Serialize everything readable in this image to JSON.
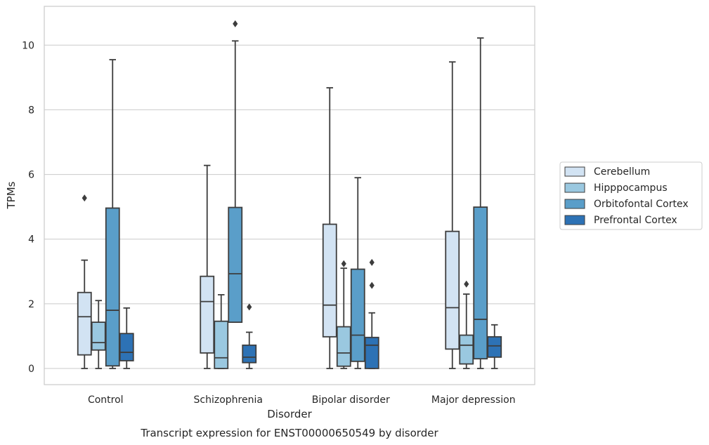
{
  "caption": "Transcript expression for ENST00000650549 by disorder",
  "chart_data": {
    "type": "box",
    "title": "",
    "xlabel": "Disorder",
    "ylabel": "TPMs",
    "ylim": [
      -0.5,
      11.2
    ],
    "yticks": [
      0,
      2,
      4,
      6,
      8,
      10
    ],
    "grid": "horizontal",
    "legend_position": "right-outside",
    "categories": [
      "Control",
      "Schizophrenia",
      "Bipolar disorder",
      "Major depression"
    ],
    "series": [
      {
        "name": "Cerebellum",
        "color": "#d2e3f3",
        "boxes": [
          {
            "whislo": 0.0,
            "q1": 0.42,
            "med": 1.6,
            "q3": 2.35,
            "whishi": 3.35,
            "fliers": [
              5.27
            ]
          },
          {
            "whislo": 0.0,
            "q1": 0.48,
            "med": 2.07,
            "q3": 2.85,
            "whishi": 6.28,
            "fliers": []
          },
          {
            "whislo": 0.0,
            "q1": 0.98,
            "med": 1.96,
            "q3": 4.46,
            "whishi": 8.68,
            "fliers": []
          },
          {
            "whislo": 0.0,
            "q1": 0.6,
            "med": 1.88,
            "q3": 4.24,
            "whishi": 9.48,
            "fliers": []
          }
        ]
      },
      {
        "name": "Hipppocampus",
        "color": "#9ac8e0",
        "boxes": [
          {
            "whislo": 0.0,
            "q1": 0.57,
            "med": 0.8,
            "q3": 1.43,
            "whishi": 2.1,
            "fliers": []
          },
          {
            "whislo": 0.0,
            "q1": 0.0,
            "med": 0.33,
            "q3": 1.46,
            "whishi": 2.28,
            "fliers": []
          },
          {
            "whislo": 0.0,
            "q1": 0.07,
            "med": 0.48,
            "q3": 1.29,
            "whishi": 3.1,
            "fliers": [
              3.24
            ]
          },
          {
            "whislo": 0.0,
            "q1": 0.14,
            "med": 0.72,
            "q3": 1.03,
            "whishi": 2.3,
            "fliers": [
              2.61
            ]
          }
        ]
      },
      {
        "name": "Orbitofontal Cortex",
        "color": "#5a9ec9",
        "boxes": [
          {
            "whislo": 0.0,
            "q1": 0.08,
            "med": 1.8,
            "q3": 4.96,
            "whishi": 9.55,
            "fliers": []
          },
          {
            "whislo": 1.43,
            "q1": 1.43,
            "med": 2.93,
            "q3": 4.98,
            "whishi": 10.13,
            "fliers": [
              10.66
            ]
          },
          {
            "whislo": 0.0,
            "q1": 0.22,
            "med": 1.03,
            "q3": 3.07,
            "whishi": 5.9,
            "fliers": []
          },
          {
            "whislo": 0.0,
            "q1": 0.3,
            "med": 1.52,
            "q3": 4.99,
            "whishi": 10.22,
            "fliers": []
          }
        ]
      },
      {
        "name": "Prefrontal Cortex",
        "color": "#2d72b5",
        "boxes": [
          {
            "whislo": 0.0,
            "q1": 0.24,
            "med": 0.5,
            "q3": 1.08,
            "whishi": 1.87,
            "fliers": []
          },
          {
            "whislo": 0.0,
            "q1": 0.18,
            "med": 0.35,
            "q3": 0.72,
            "whishi": 1.12,
            "fliers": [
              1.9
            ]
          },
          {
            "whislo": 0.0,
            "q1": 0.0,
            "med": 0.72,
            "q3": 0.96,
            "whishi": 1.72,
            "fliers": [
              2.57,
              3.28
            ]
          },
          {
            "whislo": 0.0,
            "q1": 0.35,
            "med": 0.7,
            "q3": 0.98,
            "whishi": 1.35,
            "fliers": []
          }
        ]
      }
    ]
  }
}
